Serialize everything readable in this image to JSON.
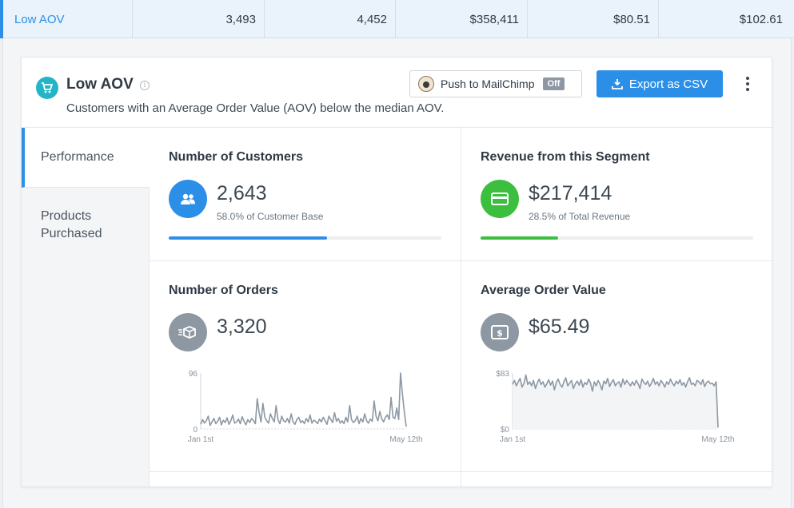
{
  "top_row": {
    "name": "Low AOV",
    "cells": [
      "3,493",
      "4,452",
      "$358,411",
      "$80.51",
      "$102.61"
    ]
  },
  "header": {
    "title": "Low AOV",
    "info_icon": "info-icon",
    "description": "Customers with an Average Order Value (AOV) below the median AOV.",
    "mailchimp_label": "Push to MailChimp",
    "mailchimp_state": "Off",
    "export_label": "Export as CSV"
  },
  "tabs": [
    {
      "label": "Performance",
      "active": true
    },
    {
      "label": "Products Purchased",
      "active": false
    }
  ],
  "colors": {
    "accent": "#2b8fe8",
    "segment": "#22b5c8",
    "customers": "#2b8fe8",
    "revenue": "#3cbf3f",
    "neutral": "#8d98a3"
  },
  "metrics": {
    "customers": {
      "title": "Number of Customers",
      "value": "2,643",
      "subtitle": "58.0% of Customer Base",
      "progress": 0.58,
      "icon": "users-icon"
    },
    "revenue": {
      "title": "Revenue from this Segment",
      "value": "$217,414",
      "subtitle": "28.5% of Total Revenue",
      "progress": 0.285,
      "icon": "credit-card-icon"
    },
    "orders": {
      "title": "Number of Orders",
      "value": "3,320",
      "icon": "box-icon"
    },
    "aov": {
      "title": "Average Order Value",
      "value": "$65.49",
      "icon": "money-icon"
    }
  },
  "chart_data": [
    {
      "type": "line",
      "ylim": [
        0,
        96
      ],
      "y_ticks": [
        "96",
        "0"
      ],
      "x_ticks": [
        "Jan 1st",
        "May 12th"
      ],
      "values": [
        8,
        16,
        10,
        14,
        22,
        6,
        12,
        18,
        9,
        13,
        20,
        7,
        15,
        11,
        19,
        8,
        14,
        24,
        10,
        12,
        17,
        9,
        21,
        13,
        7,
        16,
        11,
        18,
        14,
        9,
        52,
        28,
        12,
        44,
        20,
        14,
        10,
        26,
        18,
        12,
        40,
        16,
        9,
        22,
        14,
        12,
        18,
        10,
        26,
        12,
        8,
        16,
        20,
        11,
        14,
        9,
        18,
        12,
        24,
        10,
        15,
        13,
        9,
        17,
        12,
        20,
        14,
        8,
        22,
        16,
        11,
        28,
        13,
        18,
        10,
        14,
        9,
        20,
        12,
        40,
        16,
        11,
        14,
        22,
        9,
        18,
        12,
        26,
        14,
        10,
        17,
        13,
        48,
        22,
        14,
        30,
        18,
        12,
        20,
        24,
        16,
        54,
        20,
        18,
        36,
        16,
        96,
        60,
        30,
        4
      ]
    },
    {
      "type": "line",
      "ylim": [
        0,
        83
      ],
      "y_ticks": [
        "$83",
        "$0"
      ],
      "x_ticks": [
        "Jan 1st",
        "May 12th"
      ],
      "values": [
        66,
        72,
        64,
        70,
        75,
        62,
        68,
        80,
        66,
        70,
        64,
        72,
        60,
        68,
        74,
        66,
        70,
        62,
        67,
        73,
        65,
        71,
        58,
        69,
        74,
        66,
        62,
        70,
        76,
        64,
        68,
        72,
        60,
        67,
        71,
        65,
        73,
        62,
        69,
        66,
        74,
        68,
        56,
        70,
        64,
        72,
        66,
        58,
        71,
        67,
        75,
        63,
        69,
        73,
        64,
        68,
        70,
        62,
        74,
        66,
        72,
        68,
        64,
        70,
        65,
        72,
        67,
        60,
        74,
        69,
        66,
        71,
        63,
        68,
        75,
        66,
        70,
        64,
        72,
        68,
        62,
        70,
        66,
        74,
        68,
        64,
        71,
        67,
        73,
        65,
        69,
        62,
        70,
        76,
        66,
        68,
        64,
        72,
        70,
        66,
        73,
        63,
        69,
        71,
        67,
        68,
        64,
        70,
        2
      ]
    }
  ]
}
